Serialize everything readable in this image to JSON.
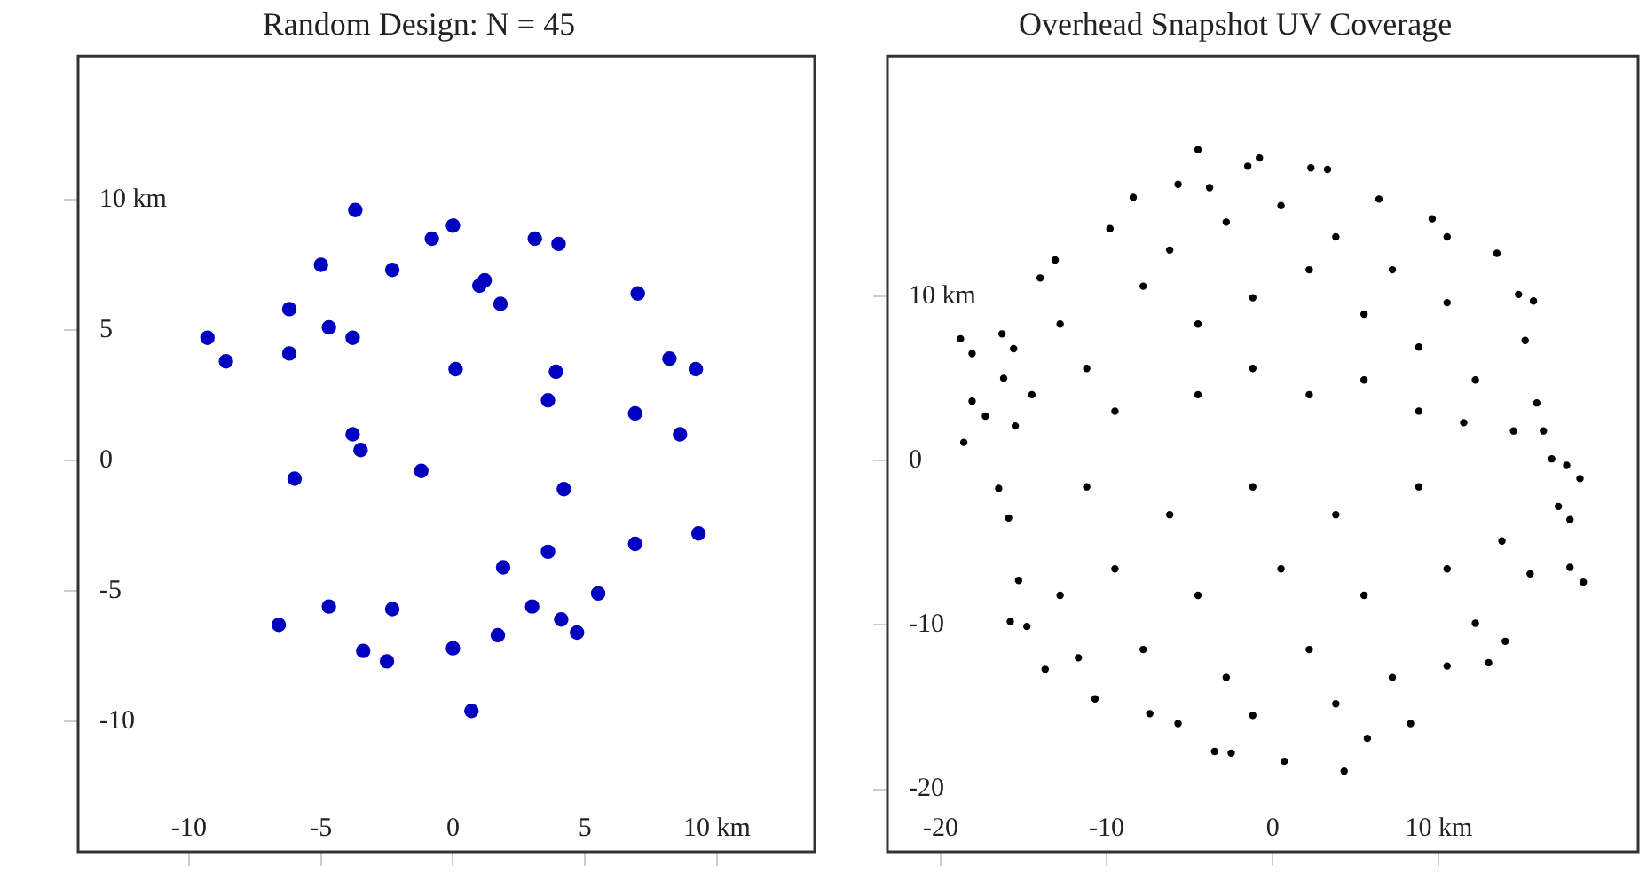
{
  "chart_data": [
    {
      "type": "scatter",
      "title": "Random Design: N = 45",
      "xlim": [
        -14.2,
        13.7
      ],
      "ylim": [
        -15,
        15.5
      ],
      "xticks": [
        -10,
        -5,
        0,
        5,
        {
          "value": 10,
          "label": "10 km"
        }
      ],
      "yticks": [
        -10,
        -5,
        0,
        5,
        {
          "value": 10,
          "label": "10 km"
        }
      ],
      "marker": "circle",
      "series": [
        {
          "color": "#0000c0",
          "x": [
            -3.7,
            0,
            -0.8,
            3.1,
            4,
            -5,
            -2.3,
            1.2,
            1,
            1.8,
            7,
            -6.2,
            -4.7,
            -9.3,
            -3.8,
            -8.6,
            -6.2,
            0.1,
            3.9,
            8.2,
            9.2,
            3.6,
            6.9,
            8.6,
            -3.8,
            -3.5,
            -6,
            -1.2,
            4.2,
            9.3,
            6.9,
            3.6,
            1.9,
            5.5,
            3,
            -4.7,
            -2.3,
            4.1,
            -6.6,
            4.7,
            1.7,
            -3.4,
            0,
            -2.5,
            0.7
          ],
          "values": [
            9.6,
            9,
            8.5,
            8.5,
            8.3,
            7.5,
            7.3,
            6.9,
            6.7,
            6,
            6.4,
            5.8,
            5.1,
            4.7,
            4.7,
            3.8,
            4.1,
            3.5,
            3.4,
            3.9,
            3.5,
            2.3,
            1.8,
            1,
            1,
            0.4,
            -0.7,
            -0.4,
            -1.1,
            -2.8,
            -3.2,
            -3.5,
            -4.1,
            -5.1,
            -5.6,
            -5.6,
            -5.7,
            -6.1,
            -6.3,
            -6.6,
            -6.7,
            -7.3,
            -7.2,
            -7.7,
            -9.6
          ]
        }
      ]
    },
    {
      "type": "scatter",
      "title": "Overhead Snapshot UV Coverage",
      "xlim": [
        -23.2,
        22
      ],
      "ylim": [
        -23.8,
        24.6
      ],
      "xticks": [
        -20,
        -10,
        0,
        {
          "value": 10,
          "label": "10 km"
        }
      ],
      "yticks": [
        -20,
        -10,
        0,
        {
          "value": 10,
          "label": "10 km"
        }
      ],
      "marker": "circle",
      "series": [
        {
          "color": "#000000",
          "x": [
            -4.5,
            -0.8,
            -1.5,
            2.3,
            3.3,
            -5.7,
            -3.8,
            -8.4,
            6.4,
            9.6,
            10.5,
            -9.8,
            -13.1,
            13.5,
            -14,
            14.8,
            15.7,
            -18.8,
            -18.1,
            -16.3,
            -15.6,
            15.2,
            -18.1,
            -17.3,
            -15.5,
            15.9,
            16.3,
            14.5,
            -7.8,
            -4.5,
            -1.2,
            2.2,
            5.5,
            8.8,
            12.2,
            -11.2,
            -12.8,
            -6.2,
            -2.8,
            0.5,
            3.8,
            7.2,
            10.5,
            -14.5,
            -9.5,
            -4.5,
            -1.2,
            2.2,
            5.5,
            8.8,
            11.5,
            -16.2,
            -18.6,
            -16.5,
            -15.9,
            -15.3,
            -15.8,
            -14.8,
            -13.7,
            -11.7,
            -10.7,
            -7.4,
            -5.7,
            -3.5,
            -2.5,
            0.7,
            4.3,
            5.7,
            8.3,
            10.5,
            13,
            14,
            15.5,
            17.9,
            18.7,
            17.9,
            17.2,
            18.5,
            17.7,
            16.8,
            -11.2,
            -6.2,
            -1.2,
            3.8,
            8.8,
            13.8,
            -9.5,
            -4.5,
            0.5,
            5.5,
            10.5,
            -7.8,
            -2.8,
            2.2,
            7.2,
            -1.2,
            3.8,
            -12.8,
            12.2
          ],
          "values": [
            18.9,
            18.4,
            17.9,
            17.8,
            17.7,
            16.8,
            16.6,
            16,
            15.9,
            14.7,
            13.6,
            14.1,
            12.2,
            12.6,
            11.1,
            10.1,
            9.7,
            7.4,
            6.5,
            7.7,
            6.8,
            7.3,
            3.6,
            2.7,
            2.1,
            3.5,
            1.8,
            1.8,
            10.6,
            8.3,
            9.9,
            11.6,
            8.9,
            6.9,
            4.9,
            5.6,
            8.3,
            12.8,
            14.5,
            15.5,
            13.6,
            11.6,
            9.6,
            4,
            3,
            4,
            5.6,
            4,
            4.9,
            3,
            2.3,
            5,
            1.1,
            -1.7,
            -3.5,
            -7.3,
            -9.8,
            -10.1,
            -12.7,
            -12,
            -14.5,
            -15.4,
            -16,
            -17.7,
            -17.8,
            -18.3,
            -18.9,
            -16.9,
            -16,
            -12.5,
            -12.3,
            -11,
            -6.9,
            -6.5,
            -7.4,
            -3.6,
            -2.8,
            -1.1,
            -0.3,
            0.1,
            -1.6,
            -3.3,
            -1.6,
            -3.3,
            -1.6,
            -4.9,
            -6.6,
            -8.2,
            -6.6,
            -8.2,
            -6.6,
            -11.5,
            -13.2,
            -11.5,
            -13.2,
            -15.5,
            -14.8,
            -8.2,
            -9.9
          ]
        }
      ]
    }
  ]
}
